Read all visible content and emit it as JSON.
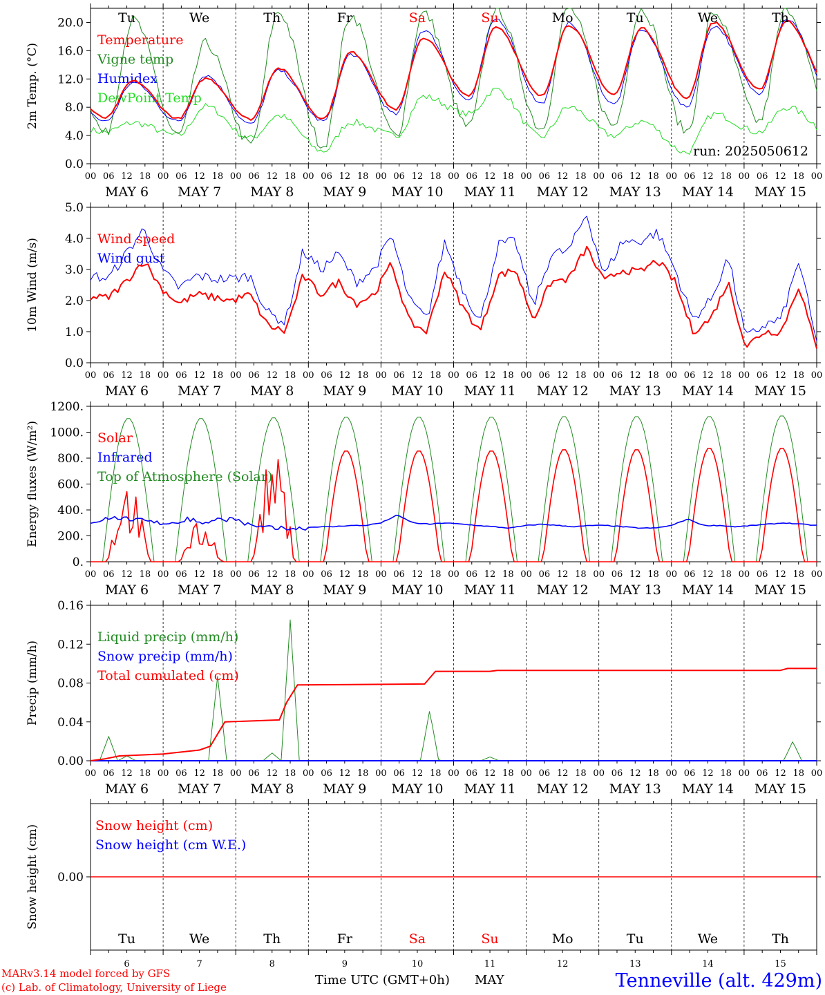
{
  "colors": {
    "red": "#ff0000",
    "green": "#228b22",
    "blue": "#0000ff",
    "lime": "#22dd22",
    "black": "#000000"
  },
  "days": [
    {
      "abbr": "Tu",
      "num": "6",
      "color": "#000000"
    },
    {
      "abbr": "We",
      "num": "7",
      "color": "#000000"
    },
    {
      "abbr": "Th",
      "num": "8",
      "color": "#000000"
    },
    {
      "abbr": "Fr",
      "num": "9",
      "color": "#000000"
    },
    {
      "abbr": "Sa",
      "num": "10",
      "color": "#ff0000"
    },
    {
      "abbr": "Su",
      "num": "11",
      "color": "#ff0000"
    },
    {
      "abbr": "Mo",
      "num": "12",
      "color": "#000000"
    },
    {
      "abbr": "Tu",
      "num": "13",
      "color": "#000000"
    },
    {
      "abbr": "We",
      "num": "14",
      "color": "#000000"
    },
    {
      "abbr": "Th",
      "num": "15",
      "color": "#000000"
    }
  ],
  "date_labels": [
    "MAY  6",
    "MAY  7",
    "MAY  8",
    "MAY  9",
    "MAY 10",
    "MAY 11",
    "MAY 12",
    "MAY 13",
    "MAY 14",
    "MAY 15"
  ],
  "hour_labels": [
    "00",
    "06",
    "12",
    "18"
  ],
  "month_label": "MAY",
  "chart_data": [
    {
      "type": "line",
      "ylabel": "2m Temp. (°C)",
      "ylim": [
        0,
        22
      ],
      "yticks": [
        0,
        4,
        8,
        12,
        16,
        20
      ],
      "ytick_labels": [
        "0.0",
        "4.0",
        "8.0",
        "12.0",
        "16.0",
        "20.0"
      ],
      "annotation": "run: 2025050612",
      "legend": [
        {
          "name": "Temperature",
          "color": "#ff0000"
        },
        {
          "name": "Vigne temp",
          "color": "#228b22"
        },
        {
          "name": "Humidex",
          "color": "#0000ff"
        },
        {
          "name": "DewPoint Temp",
          "color": "#22dd22"
        }
      ],
      "daily": {
        "temperature": {
          "min": [
            6.5,
            6.4,
            6.3,
            6.4,
            7.7,
            9.6,
            9.6,
            9.8,
            9.3,
            10.5
          ],
          "max": [
            11.7,
            12.1,
            13.5,
            15.8,
            17.8,
            19.4,
            19.6,
            19.2,
            20.0,
            20.2
          ]
        },
        "vigne": {
          "min": [
            4.3,
            4.0,
            2.7,
            2.6,
            4.0,
            5.2,
            5.0,
            5.4,
            4.6,
            6.0
          ],
          "max": [
            20.3,
            17.0,
            21.5,
            21.0,
            21.3,
            22.0,
            22.0,
            22.0,
            21.4,
            22.0
          ]
        },
        "humidex": {
          "min": [
            6.0,
            6.0,
            5.6,
            6.0,
            7.0,
            9.0,
            8.5,
            8.4,
            8.0,
            10.0
          ],
          "max": [
            11.5,
            12.5,
            13.2,
            15.5,
            18.9,
            20.5,
            19.9,
            19.0,
            19.5,
            20.5
          ]
        },
        "dewpoint": {
          "min": [
            4.5,
            4.0,
            3.6,
            1.8,
            4.0,
            7.0,
            3.8,
            4.0,
            1.6,
            4.5
          ],
          "max": [
            5.8,
            8.1,
            6.8,
            5.9,
            9.5,
            10.5,
            8.0,
            6.0,
            7.0,
            8.0
          ]
        }
      }
    },
    {
      "type": "line",
      "ylabel": "10m Wind (m/s)",
      "ylim": [
        0,
        5
      ],
      "yticks": [
        0,
        1,
        2,
        3,
        4,
        5
      ],
      "ytick_labels": [
        "0.0",
        "1.0",
        "2.0",
        "3.0",
        "4.0",
        "5.0"
      ],
      "legend": [
        {
          "name": "Wind speed",
          "color": "#ff0000"
        },
        {
          "name": "Wind gust",
          "color": "#0000ff"
        }
      ],
      "wind_speed": [
        2.1,
        2.1,
        2.6,
        3.3,
        2.4,
        1.9,
        2.2,
        2.1,
        2.0,
        2.2,
        1.2,
        1.0,
        2.8,
        2.2,
        2.6,
        1.9,
        2.2,
        3.2,
        1.3,
        1.0,
        3.0,
        1.8,
        1.0,
        2.8,
        3.0,
        1.4,
        2.6,
        2.7,
        3.7,
        2.6,
        3.0,
        2.9,
        3.3,
        2.6,
        1.0,
        1.4,
        2.6,
        0.5,
        1.0,
        1.0,
        2.5,
        0.4
      ],
      "wind_gust": [
        2.8,
        2.7,
        3.5,
        4.3,
        3.0,
        2.4,
        2.8,
        2.7,
        2.7,
        2.8,
        1.6,
        1.3,
        3.6,
        3.0,
        3.5,
        2.6,
        3.0,
        4.1,
        2.0,
        1.4,
        3.9,
        2.4,
        1.3,
        3.8,
        3.9,
        1.8,
        3.5,
        3.6,
        4.8,
        2.8,
        3.9,
        3.9,
        4.2,
        3.0,
        1.4,
        2.0,
        3.4,
        0.8,
        1.2,
        1.4,
        3.3,
        0.6
      ]
    },
    {
      "type": "line",
      "ylabel": "Energy fluxes (W/m²)",
      "ylim": [
        0,
        1200
      ],
      "yticks": [
        0,
        200,
        400,
        600,
        800,
        1000,
        1200
      ],
      "ytick_labels": [
        "0.",
        "200.",
        "400.",
        "600.",
        "800.",
        "1000.",
        "1200."
      ],
      "legend": [
        {
          "name": "Solar",
          "color": "#ff0000"
        },
        {
          "name": "Infrared",
          "color": "#0000ff"
        },
        {
          "name": "Top of Atmosphere (Solar)",
          "color": "#228b22"
        }
      ],
      "toa_daily_max": [
        1110,
        1110,
        1115,
        1120,
        1120,
        1120,
        1125,
        1125,
        1125,
        1130
      ],
      "solar_daily_max": [
        600,
        300,
        810,
        860,
        860,
        860,
        870,
        870,
        880,
        880
      ],
      "infrared": [
        310,
        330,
        340,
        320,
        300,
        300,
        330,
        300,
        330,
        330,
        270,
        260,
        255,
        260,
        270,
        270,
        280,
        280,
        300,
        360,
        300,
        290,
        300,
        290,
        280,
        270,
        260,
        280,
        290,
        280,
        270,
        280,
        280,
        270,
        260,
        260,
        280,
        330,
        280,
        280,
        270,
        280,
        290,
        300,
        290,
        280
      ]
    },
    {
      "type": "line",
      "ylabel": "Precip (mm/h)",
      "ylim": [
        0,
        0.16
      ],
      "yticks": [
        0,
        0.04,
        0.08,
        0.12,
        0.16
      ],
      "ytick_labels": [
        "0.00",
        "0.04",
        "0.08",
        "0.12",
        "0.16"
      ],
      "legend": [
        {
          "name": "Liquid precip (mm/h)",
          "color": "#228b22"
        },
        {
          "name": "Snow precip (mm/h)",
          "color": "#0000ff"
        },
        {
          "name": "Total cumulated (cm)",
          "color": "#ff0000"
        }
      ],
      "liquid_peaks": [
        [
          0.25,
          0.025
        ],
        [
          0.5,
          0.005
        ],
        [
          1.75,
          0.087
        ],
        [
          2.5,
          0.008
        ],
        [
          2.75,
          0.145
        ],
        [
          4.67,
          0.052
        ],
        [
          5.5,
          0.004
        ],
        [
          9.67,
          0.02
        ]
      ],
      "cumulated": [
        [
          0,
          0.0
        ],
        [
          0.2,
          0.002
        ],
        [
          0.4,
          0.005
        ],
        [
          1.0,
          0.007
        ],
        [
          1.5,
          0.011
        ],
        [
          1.65,
          0.015
        ],
        [
          1.85,
          0.04
        ],
        [
          2.6,
          0.042
        ],
        [
          2.7,
          0.06
        ],
        [
          2.85,
          0.078
        ],
        [
          4.6,
          0.079
        ],
        [
          4.75,
          0.092
        ],
        [
          5.5,
          0.092
        ],
        [
          5.6,
          0.093
        ],
        [
          9.5,
          0.093
        ],
        [
          9.6,
          0.095
        ],
        [
          10,
          0.095
        ]
      ]
    },
    {
      "type": "line",
      "ylabel": "Snow height (cm)",
      "ylim": [
        -1,
        1
      ],
      "yticks": [
        0
      ],
      "ytick_labels": [
        "0.00"
      ],
      "legend": [
        {
          "name": "Snow height (cm)",
          "color": "#ff0000"
        },
        {
          "name": "Snow height (cm W.E.)",
          "color": "#0000ff"
        }
      ],
      "snow_height": 0.0
    }
  ],
  "footer": {
    "model": "MARv3.14 model forced by GFS",
    "copyright": "(c) Lab. of Climatology, University of Liege",
    "time_axis": "Time UTC (GMT+0h)",
    "station": "Tenneville (alt. 429m)"
  }
}
